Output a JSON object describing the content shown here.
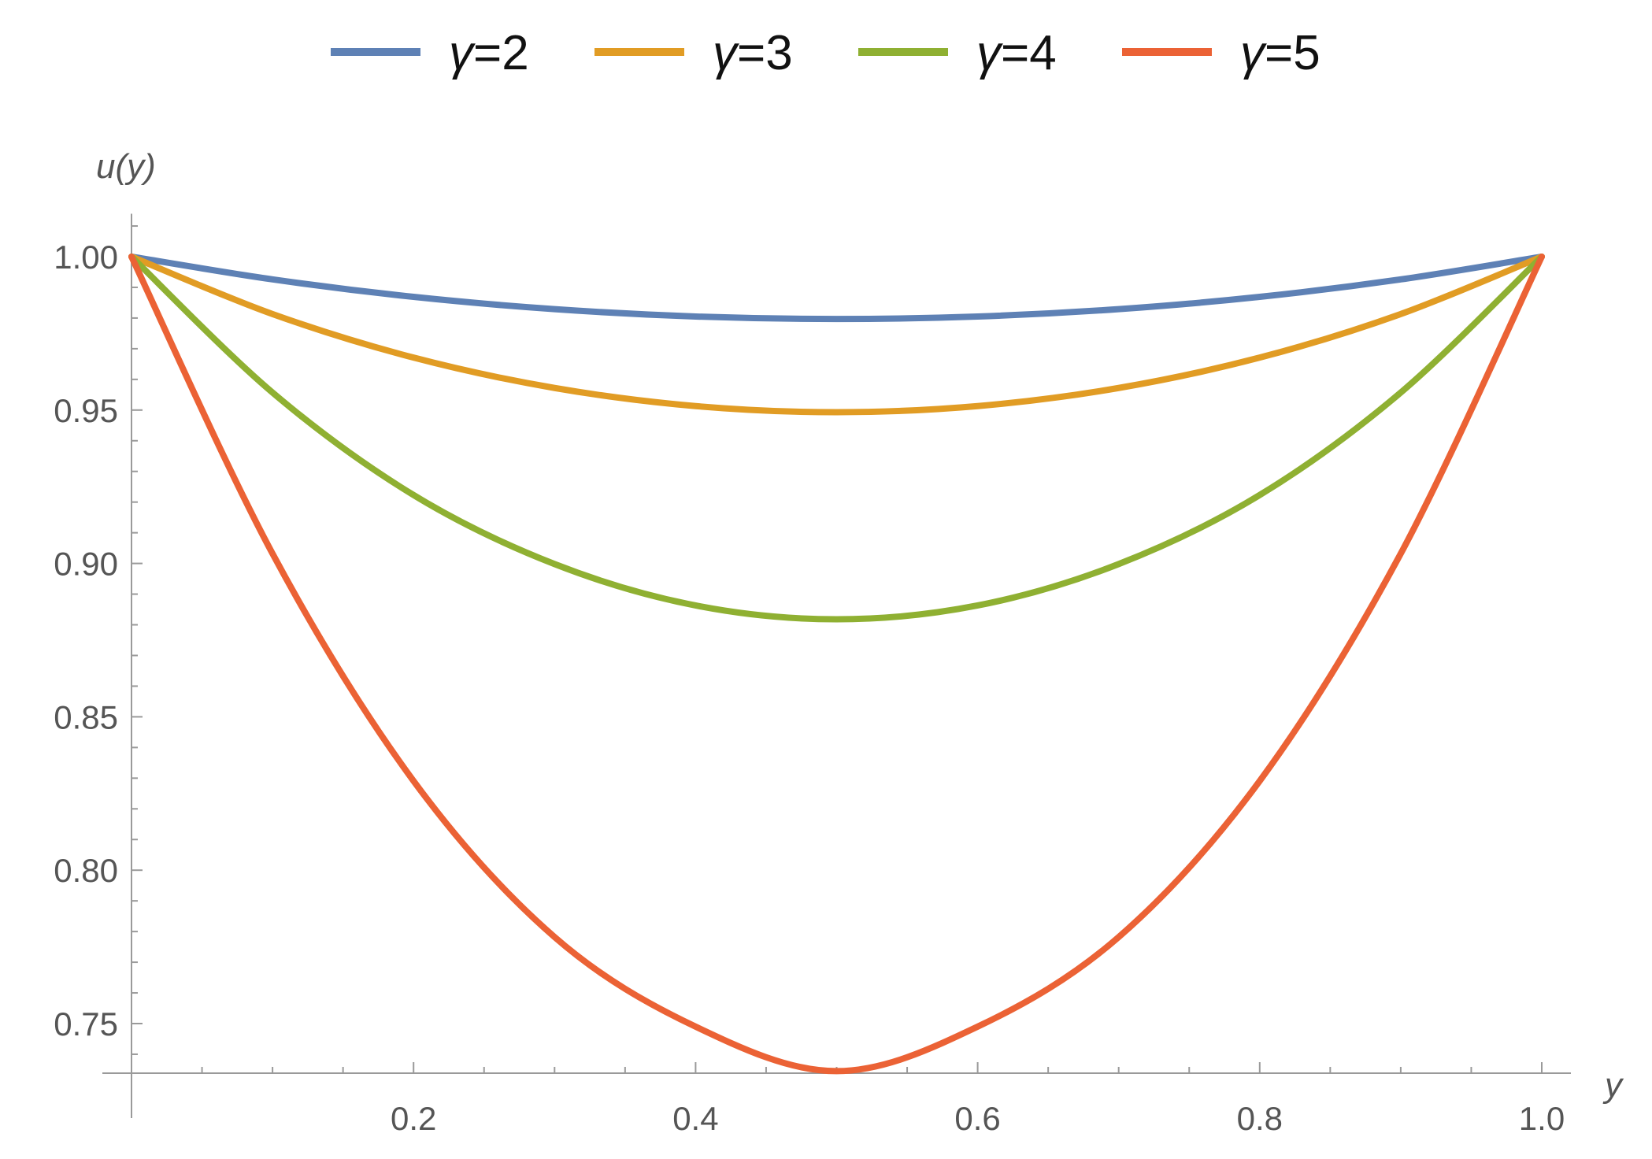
{
  "chart_data": {
    "type": "line",
    "title": "",
    "xlabel": "y",
    "ylabel": "u(y)",
    "xlim": [
      0,
      1.0
    ],
    "ylim": [
      0.733,
      1.014
    ],
    "xticks": [
      0.2,
      0.4,
      0.6,
      0.8,
      1.0
    ],
    "xtick_labels": [
      "0.2",
      "0.4",
      "0.6",
      "0.8",
      "1.0"
    ],
    "yticks": [
      0.75,
      0.8,
      0.85,
      0.9,
      0.95,
      1.0
    ],
    "ytick_labels": [
      "0.75",
      "0.80",
      "0.85",
      "0.90",
      "0.95",
      "1.00"
    ],
    "grid": false,
    "legend_position": "top",
    "x": [
      0,
      0.1,
      0.2,
      0.3,
      0.4,
      0.5,
      0.6,
      0.7,
      0.8,
      0.9,
      1.0
    ],
    "series": [
      {
        "name": "γ=2",
        "symbol": "γ",
        "suffix": "=2",
        "color": "#5E81B5",
        "values": [
          1.0,
          0.9926,
          0.9869,
          0.9829,
          0.9805,
          0.9797,
          0.9805,
          0.9829,
          0.9869,
          0.9926,
          1.0
        ]
      },
      {
        "name": "γ=3",
        "symbol": "γ",
        "suffix": "=3",
        "color": "#E19C24",
        "values": [
          1.0,
          0.9813,
          0.9671,
          0.9572,
          0.9513,
          0.9493,
          0.9513,
          0.9572,
          0.9671,
          0.9813,
          1.0
        ]
      },
      {
        "name": "γ=4",
        "symbol": "γ",
        "suffix": "=4",
        "color": "#8FB032",
        "values": [
          1.0,
          0.9557,
          0.9223,
          0.8998,
          0.8863,
          0.8818,
          0.8863,
          0.8998,
          0.9223,
          0.9557,
          1.0
        ]
      },
      {
        "name": "γ=5",
        "symbol": "γ",
        "suffix": "=5",
        "color": "#EB6235",
        "values": [
          1.0,
          0.9032,
          0.8291,
          0.7782,
          0.749,
          0.7345,
          0.749,
          0.7782,
          0.8291,
          0.9032,
          1.0
        ]
      }
    ]
  }
}
